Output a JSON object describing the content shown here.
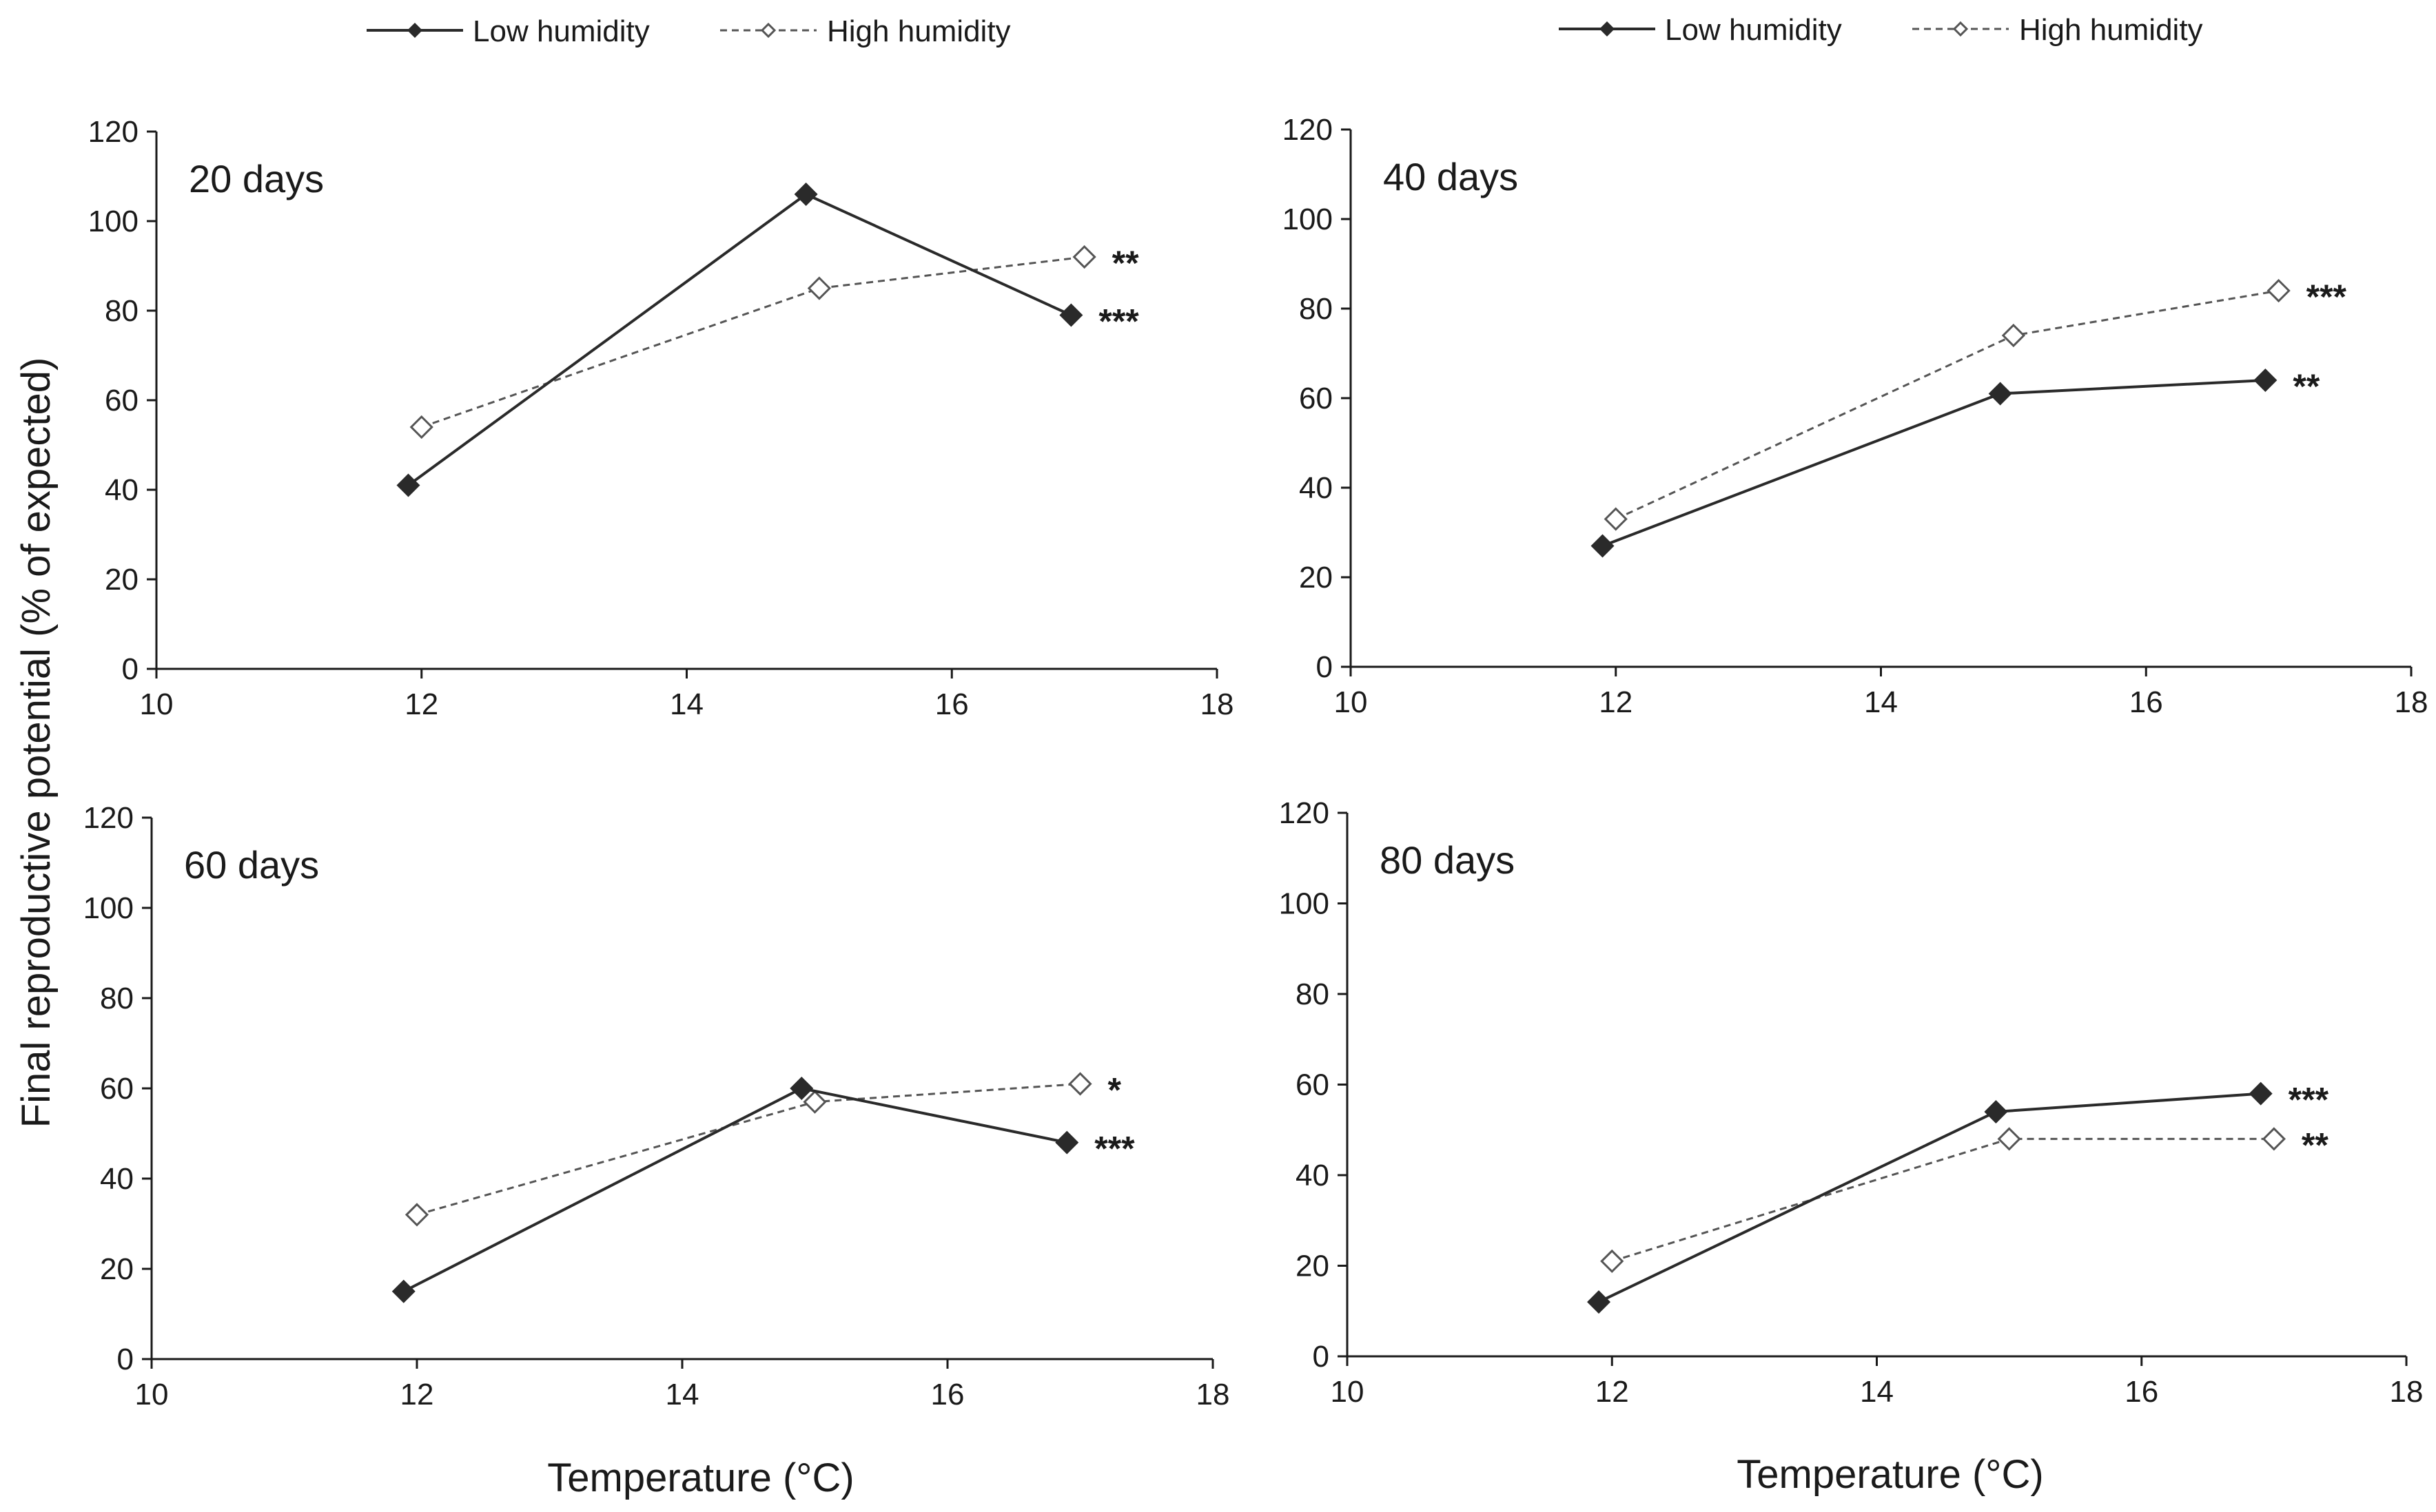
{
  "figure": {
    "y_axis_label": "Final  reproductive  potential  (%  of  expected)",
    "x_axis_label": "Temperature (°C)"
  },
  "legend": {
    "low_label": "Low humidity",
    "high_label": "High humidity"
  },
  "colors": {
    "low": "#2a2a2a",
    "high": "#555555",
    "axis": "#1a1a1a"
  },
  "chart_data": [
    {
      "type": "line",
      "title": "20 days",
      "xlabel": "Temperature (°C)",
      "ylabel": "Final reproductive potential (% of expected)",
      "xlim": [
        10,
        18
      ],
      "ylim": [
        0,
        120
      ],
      "xticks": [
        10,
        12,
        14,
        16,
        18
      ],
      "yticks": [
        0,
        20,
        40,
        60,
        80,
        100,
        120
      ],
      "series": [
        {
          "name": "Low humidity",
          "x": [
            11.9,
            14.9,
            16.9
          ],
          "y": [
            41,
            106,
            79
          ],
          "annotation": "***"
        },
        {
          "name": "High humidity",
          "x": [
            12.0,
            15.0,
            17.0
          ],
          "y": [
            54,
            85,
            92
          ],
          "annotation": "**"
        }
      ]
    },
    {
      "type": "line",
      "title": "40 days",
      "xlabel": "Temperature (°C)",
      "ylabel": "Final reproductive potential (% of expected)",
      "xlim": [
        10,
        18
      ],
      "ylim": [
        0,
        120
      ],
      "xticks": [
        10,
        12,
        14,
        16,
        18
      ],
      "yticks": [
        0,
        20,
        40,
        60,
        80,
        100,
        120
      ],
      "series": [
        {
          "name": "Low humidity",
          "x": [
            11.9,
            14.9,
            16.9
          ],
          "y": [
            27,
            61,
            64
          ],
          "annotation": "**"
        },
        {
          "name": "High humidity",
          "x": [
            12.0,
            15.0,
            17.0
          ],
          "y": [
            33,
            74,
            84
          ],
          "annotation": "***"
        }
      ]
    },
    {
      "type": "line",
      "title": "60 days",
      "xlabel": "Temperature (°C)",
      "ylabel": "Final reproductive potential (% of expected)",
      "xlim": [
        10,
        18
      ],
      "ylim": [
        0,
        120
      ],
      "xticks": [
        10,
        12,
        14,
        16,
        18
      ],
      "yticks": [
        0,
        20,
        40,
        60,
        80,
        100,
        120
      ],
      "series": [
        {
          "name": "Low humidity",
          "x": [
            11.9,
            14.9,
            16.9
          ],
          "y": [
            15,
            60,
            48
          ],
          "annotation": "***"
        },
        {
          "name": "High humidity",
          "x": [
            12.0,
            15.0,
            17.0
          ],
          "y": [
            32,
            57,
            61
          ],
          "annotation": "*"
        }
      ]
    },
    {
      "type": "line",
      "title": "80 days",
      "xlabel": "Temperature (°C)",
      "ylabel": "Final reproductive potential (% of expected)",
      "xlim": [
        10,
        18
      ],
      "ylim": [
        0,
        120
      ],
      "xticks": [
        10,
        12,
        14,
        16,
        18
      ],
      "yticks": [
        0,
        20,
        40,
        60,
        80,
        100,
        120
      ],
      "series": [
        {
          "name": "Low humidity",
          "x": [
            11.9,
            14.9,
            16.9
          ],
          "y": [
            12,
            54,
            58
          ],
          "annotation": "***"
        },
        {
          "name": "High humidity",
          "x": [
            12.0,
            15.0,
            17.0
          ],
          "y": [
            21,
            48,
            48
          ],
          "annotation": "**"
        }
      ]
    }
  ]
}
